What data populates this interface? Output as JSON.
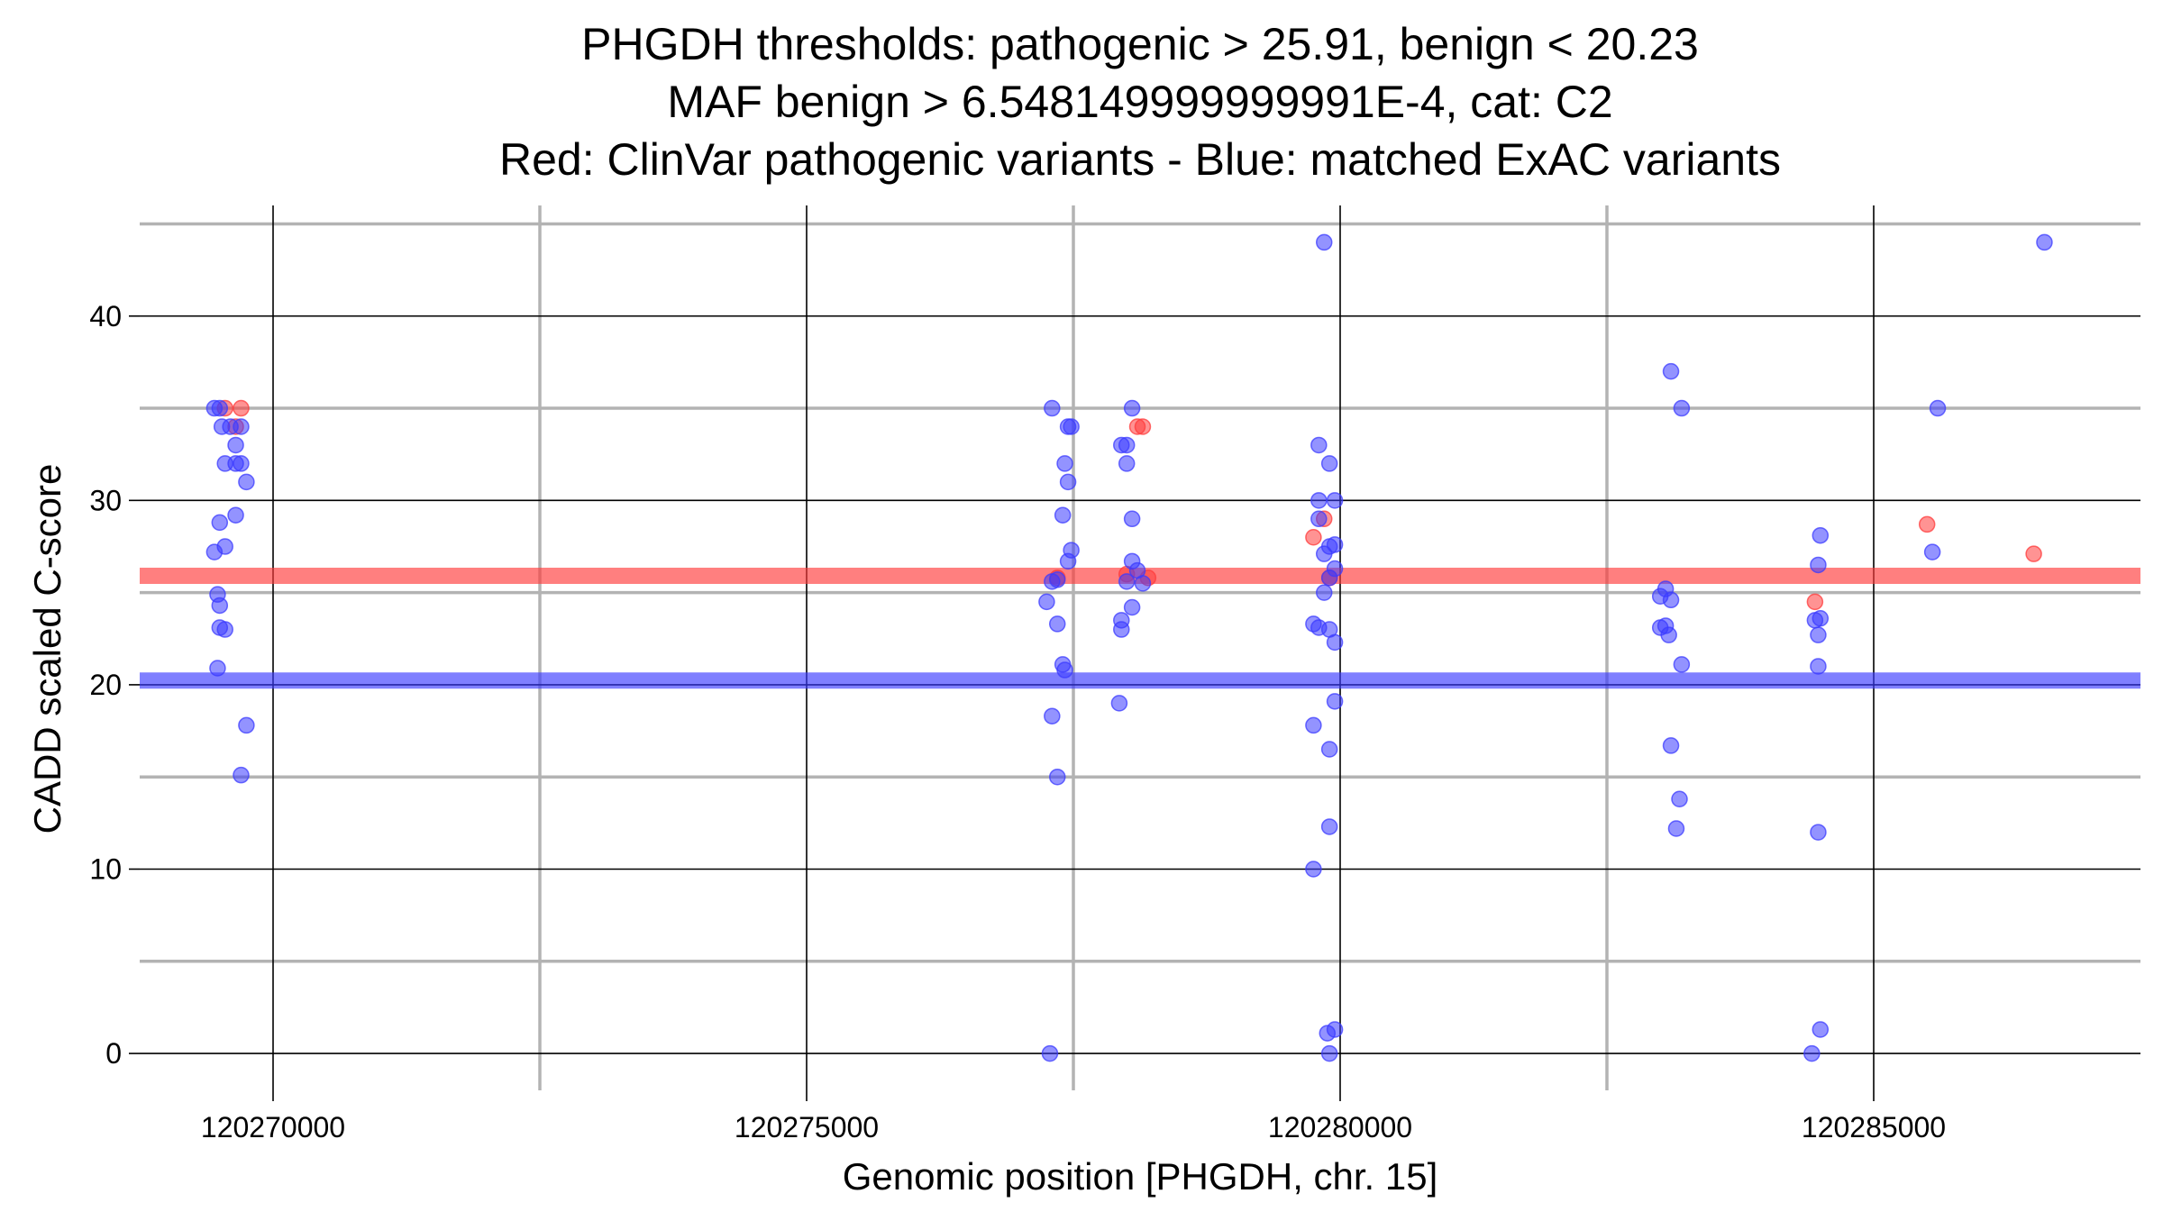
{
  "chart_data": {
    "type": "scatter",
    "title_lines": [
      "PHGDH thresholds: pathogenic > 25.91, benign < 20.23",
      "MAF benign > 6.548149999999991E-4, cat: C2",
      "Red: ClinVar pathogenic variants - Blue: matched ExAC variants"
    ],
    "xlabel": "Genomic position [PHGDH, chr. 15]",
    "ylabel": "CADD scaled C-score",
    "xlim": [
      120268750,
      120287500
    ],
    "ylim": [
      -2,
      46
    ],
    "x_major_ticks": [
      120270000,
      120275000,
      120280000,
      120285000
    ],
    "x_tick_labels": [
      "120270000",
      "120275000",
      "120280000",
      "120285000"
    ],
    "x_minor_ticks": [
      120272500,
      120277500,
      120282500
    ],
    "y_major_ticks": [
      0,
      10,
      20,
      30,
      40
    ],
    "y_tick_labels": [
      "0",
      "10",
      "20",
      "30",
      "40"
    ],
    "y_minor_ticks": [
      5,
      15,
      25,
      35,
      45
    ],
    "grid": true,
    "colors": {
      "pathogenic": "#ff3b3b",
      "benign": "#3b3bff",
      "major_grid": "#000000",
      "minor_grid": "#b3b3b3"
    },
    "thresholds": {
      "pathogenic": 25.91,
      "benign": 20.23
    },
    "series": [
      {
        "color": "#ff3b3b",
        "points": [
          [
            120269550,
            35
          ],
          [
            120269700,
            35
          ],
          [
            120269650,
            34
          ],
          [
            120277350,
            25.8
          ],
          [
            120278000,
            26
          ],
          [
            120278100,
            34
          ],
          [
            120278150,
            34
          ],
          [
            120278200,
            25.8
          ],
          [
            120279750,
            28
          ],
          [
            120279850,
            29
          ],
          [
            120279900,
            25.8
          ],
          [
            120284450,
            24.5
          ],
          [
            120285500,
            28.7
          ],
          [
            120286500,
            27.1
          ]
        ]
      },
      {
        "color": "#3b3bff",
        "points": [
          [
            120269450,
            35
          ],
          [
            120269500,
            35
          ],
          [
            120269520,
            34
          ],
          [
            120269550,
            32
          ],
          [
            120269600,
            34
          ],
          [
            120269700,
            34
          ],
          [
            120269650,
            32
          ],
          [
            120269700,
            32
          ],
          [
            120269650,
            33
          ],
          [
            120269750,
            31
          ],
          [
            120269650,
            29.2
          ],
          [
            120269500,
            28.8
          ],
          [
            120269550,
            27.5
          ],
          [
            120269450,
            27.2
          ],
          [
            120269480,
            24.9
          ],
          [
            120269500,
            24.3
          ],
          [
            120269500,
            23.1
          ],
          [
            120269550,
            23
          ],
          [
            120269480,
            20.9
          ],
          [
            120269750,
            17.8
          ],
          [
            120269700,
            15.1
          ],
          [
            120277300,
            35
          ],
          [
            120277450,
            34
          ],
          [
            120277480,
            34
          ],
          [
            120277420,
            32
          ],
          [
            120277450,
            31
          ],
          [
            120277400,
            29.2
          ],
          [
            120277480,
            27.3
          ],
          [
            120277450,
            26.7
          ],
          [
            120277300,
            25.6
          ],
          [
            120277350,
            25.7
          ],
          [
            120277250,
            24.5
          ],
          [
            120277350,
            23.3
          ],
          [
            120277400,
            21.1
          ],
          [
            120277420,
            20.8
          ],
          [
            120277300,
            18.3
          ],
          [
            120277350,
            15
          ],
          [
            120277280,
            0
          ],
          [
            120278050,
            35
          ],
          [
            120277950,
            33
          ],
          [
            120278000,
            33
          ],
          [
            120278000,
            32
          ],
          [
            120278050,
            29
          ],
          [
            120278050,
            26.7
          ],
          [
            120278100,
            26.2
          ],
          [
            120278000,
            25.6
          ],
          [
            120278150,
            25.5
          ],
          [
            120278050,
            24.2
          ],
          [
            120277950,
            23.5
          ],
          [
            120277950,
            23
          ],
          [
            120277930,
            19
          ],
          [
            120279850,
            44
          ],
          [
            120279800,
            33
          ],
          [
            120279900,
            32
          ],
          [
            120279800,
            30
          ],
          [
            120279950,
            30
          ],
          [
            120279800,
            29
          ],
          [
            120279900,
            27.5
          ],
          [
            120279950,
            27.6
          ],
          [
            120279850,
            27.1
          ],
          [
            120279950,
            26.3
          ],
          [
            120279900,
            25.8
          ],
          [
            120279850,
            25
          ],
          [
            120279750,
            23.3
          ],
          [
            120279800,
            23.1
          ],
          [
            120279900,
            23
          ],
          [
            120279950,
            22.3
          ],
          [
            120279950,
            19.1
          ],
          [
            120279750,
            17.8
          ],
          [
            120279900,
            16.5
          ],
          [
            120279900,
            12.3
          ],
          [
            120279750,
            10
          ],
          [
            120279950,
            1.3
          ],
          [
            120279880,
            1.1
          ],
          [
            120279900,
            0
          ],
          [
            120283100,
            37
          ],
          [
            120283200,
            35
          ],
          [
            120283050,
            25.2
          ],
          [
            120283100,
            24.6
          ],
          [
            120283000,
            24.8
          ],
          [
            120283050,
            23.2
          ],
          [
            120283000,
            23.1
          ],
          [
            120283080,
            22.7
          ],
          [
            120283200,
            21.1
          ],
          [
            120283100,
            16.7
          ],
          [
            120283180,
            13.8
          ],
          [
            120283150,
            12.2
          ],
          [
            120284500,
            28.1
          ],
          [
            120284480,
            26.5
          ],
          [
            120284450,
            23.5
          ],
          [
            120284500,
            23.6
          ],
          [
            120284480,
            22.7
          ],
          [
            120284480,
            21
          ],
          [
            120284480,
            12
          ],
          [
            120284500,
            1.3
          ],
          [
            120284420,
            0
          ],
          [
            120285600,
            35
          ],
          [
            120285550,
            27.2
          ],
          [
            120286600,
            44
          ]
        ]
      }
    ]
  }
}
